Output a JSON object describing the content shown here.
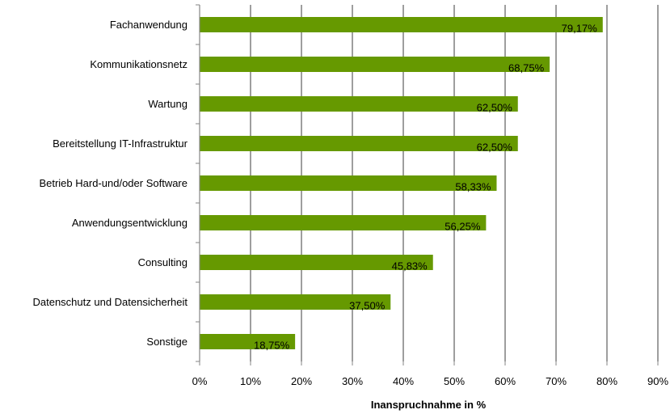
{
  "chart_data": {
    "type": "bar",
    "orientation": "horizontal",
    "categories": [
      "Fachanwendung",
      "Kommunikationsnetz",
      "Wartung",
      "Bereitstellung IT-Infrastruktur",
      "Betrieb Hard-und/oder Software",
      "Anwendungsentwicklung",
      "Consulting",
      "Datenschutz und Datensicherheit",
      "Sonstige"
    ],
    "values": [
      79.17,
      68.75,
      62.5,
      62.5,
      58.33,
      56.25,
      45.83,
      37.5,
      18.75
    ],
    "value_labels": [
      "79,17%",
      "68,75%",
      "62,50%",
      "62,50%",
      "58,33%",
      "56,25%",
      "45,83%",
      "37,50%",
      "18,75%"
    ],
    "xlabel": "Inanspruchnahme in %",
    "ylabel": "",
    "xlim": [
      0,
      90
    ],
    "x_ticks": [
      0,
      10,
      20,
      30,
      40,
      50,
      60,
      70,
      80,
      90
    ],
    "x_tick_labels": [
      "0%",
      "10%",
      "20%",
      "30%",
      "40%",
      "50%",
      "60%",
      "70%",
      "80%",
      "90%"
    ],
    "grid": "vertical",
    "legend": "none",
    "colors": {
      "bar": "#669900",
      "grid": "#868686",
      "axis": "#868686"
    }
  }
}
